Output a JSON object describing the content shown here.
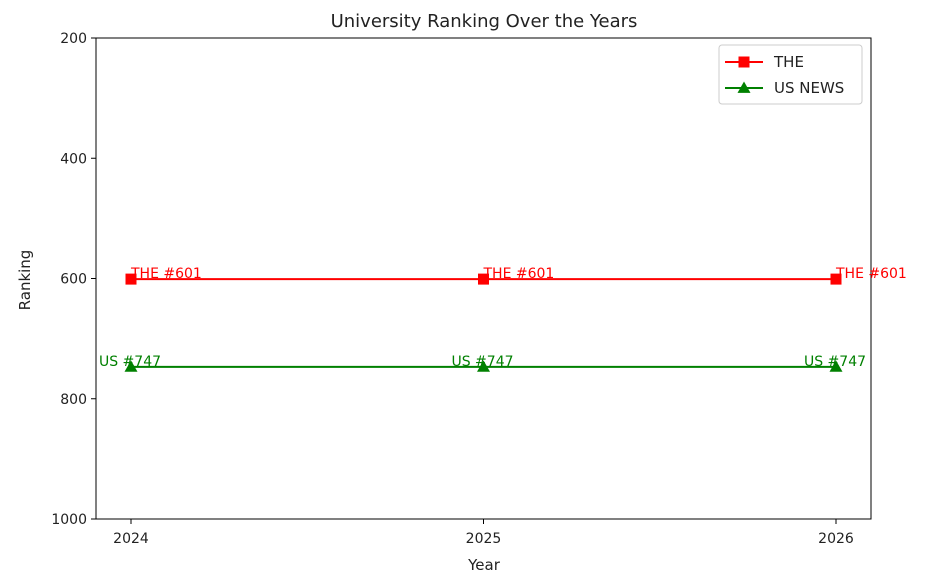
{
  "chart_data": {
    "type": "line",
    "title": "University Ranking Over the Years",
    "xlabel": "Year",
    "ylabel": "Ranking",
    "x": [
      2024,
      2025,
      2026
    ],
    "x_tick_labels": [
      "2024",
      "2025",
      "2026"
    ],
    "ylim": [
      1000,
      200
    ],
    "y_inverted": true,
    "y_ticks": [
      200,
      400,
      600,
      800,
      1000
    ],
    "y_tick_labels": [
      "200",
      "400",
      "600",
      "800",
      "1000"
    ],
    "grid": false,
    "legend_position": "top-right",
    "series": [
      {
        "name": "THE",
        "values": [
          601,
          601,
          601
        ],
        "color": "#ff0000",
        "marker": "square",
        "data_labels": [
          "THE #601",
          "THE #601",
          "THE #601"
        ]
      },
      {
        "name": "US NEWS",
        "values": [
          747,
          747,
          747
        ],
        "color": "#008000",
        "marker": "triangle",
        "data_labels": [
          "US #747",
          "US #747",
          "US #747"
        ]
      }
    ]
  }
}
